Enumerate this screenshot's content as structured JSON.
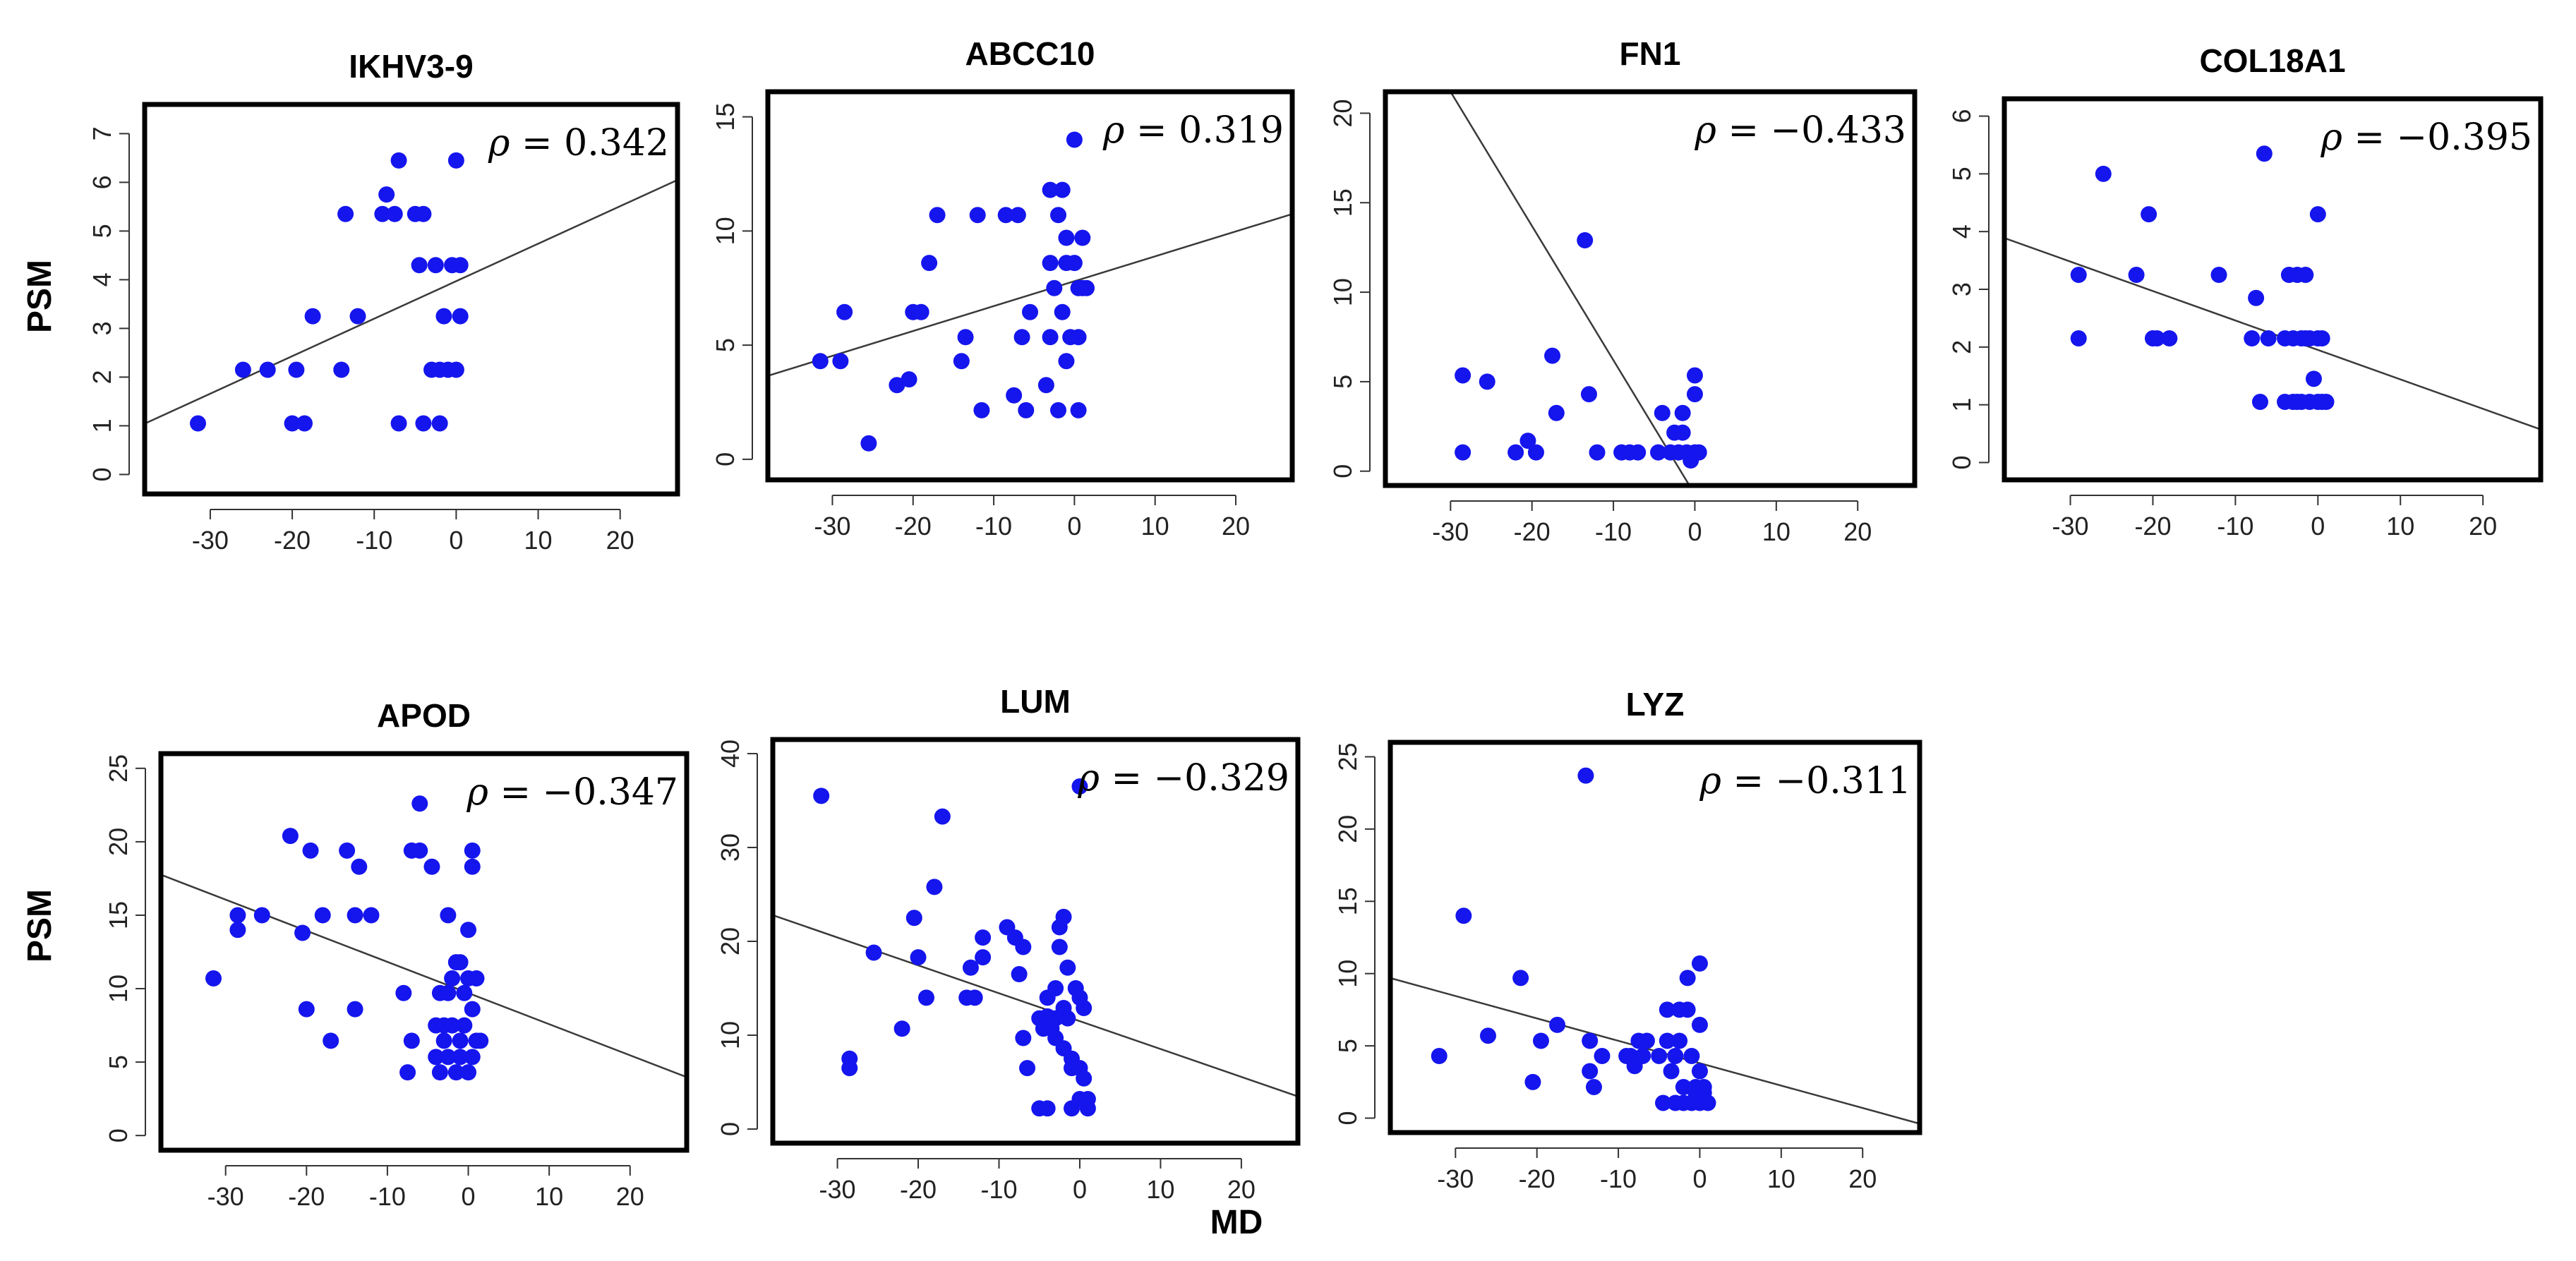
{
  "y_axis_title": "PSM",
  "x_axis_title": "MD",
  "chart_data": [
    {
      "type": "scatter",
      "title": "IKHV3-9",
      "rho": "0.342",
      "xlim": [
        -38,
        27
      ],
      "ylim": [
        -0.4,
        7.6
      ],
      "xticks": [
        -30,
        -20,
        -10,
        0,
        10,
        20
      ],
      "yticks": [
        0,
        1,
        2,
        3,
        4,
        5,
        6,
        7
      ],
      "fit": {
        "slope": 0.077,
        "intercept": 3.97
      },
      "points": [
        [
          -31.5,
          1.05
        ],
        [
          -26,
          2.15
        ],
        [
          -23,
          2.15
        ],
        [
          -19.5,
          2.15
        ],
        [
          -20,
          1.05
        ],
        [
          -18.5,
          1.05
        ],
        [
          -17.5,
          3.25
        ],
        [
          -14,
          2.15
        ],
        [
          -13.5,
          5.35
        ],
        [
          -12,
          3.25
        ],
        [
          -9,
          5.35
        ],
        [
          -8.5,
          5.75
        ],
        [
          -7.5,
          5.35
        ],
        [
          -7,
          6.45
        ],
        [
          -7,
          1.05
        ],
        [
          -5,
          5.35
        ],
        [
          -4.5,
          4.3
        ],
        [
          -4,
          5.35
        ],
        [
          -4,
          1.05
        ],
        [
          -3,
          2.15
        ],
        [
          -2.5,
          4.3
        ],
        [
          -2,
          1.05
        ],
        [
          -2,
          2.15
        ],
        [
          -1.5,
          3.25
        ],
        [
          -1,
          2.15
        ],
        [
          -0.5,
          4.3
        ],
        [
          0,
          6.45
        ],
        [
          0,
          2.15
        ],
        [
          0.5,
          3.25
        ],
        [
          0.5,
          4.3
        ]
      ]
    },
    {
      "type": "scatter",
      "title": "ABCC10",
      "rho": "0.319",
      "xlim": [
        -38,
        27
      ],
      "ylim": [
        -0.9,
        16.1
      ],
      "xticks": [
        -30,
        -20,
        -10,
        0,
        10,
        20
      ],
      "yticks": [
        0,
        5,
        10,
        15
      ],
      "fit": {
        "slope": 0.109,
        "intercept": 7.8
      },
      "points": [
        [
          -31.5,
          4.3
        ],
        [
          -29,
          4.3
        ],
        [
          -28.5,
          6.45
        ],
        [
          -25.5,
          0.7
        ],
        [
          -22,
          3.25
        ],
        [
          -20.5,
          3.5
        ],
        [
          -20,
          6.45
        ],
        [
          -19,
          6.45
        ],
        [
          -18,
          8.6
        ],
        [
          -17,
          10.7
        ],
        [
          -14,
          4.3
        ],
        [
          -13.5,
          5.35
        ],
        [
          -12,
          10.7
        ],
        [
          -11.5,
          2.15
        ],
        [
          -8.5,
          10.7
        ],
        [
          -7.5,
          2.8
        ],
        [
          -7,
          10.7
        ],
        [
          -6.5,
          5.35
        ],
        [
          -6,
          2.15
        ],
        [
          -5.5,
          6.45
        ],
        [
          -3.5,
          3.25
        ],
        [
          -3,
          5.35
        ],
        [
          -3,
          8.6
        ],
        [
          -3,
          11.8
        ],
        [
          -2.5,
          7.5
        ],
        [
          -2,
          2.15
        ],
        [
          -2,
          10.7
        ],
        [
          -1.5,
          11.8
        ],
        [
          -1.5,
          6.45
        ],
        [
          -1,
          4.3
        ],
        [
          -1,
          9.7
        ],
        [
          -1,
          8.6
        ],
        [
          -0.5,
          5.35
        ],
        [
          0,
          14
        ],
        [
          0,
          8.6
        ],
        [
          0.5,
          7.5
        ],
        [
          0.5,
          2.15
        ],
        [
          0.5,
          5.35
        ],
        [
          1,
          9.7
        ],
        [
          1,
          7.5
        ],
        [
          1.5,
          7.5
        ]
      ]
    },
    {
      "type": "scatter",
      "title": "FN1",
      "rho": "−0.433",
      "xlim": [
        -38,
        27
      ],
      "ylim": [
        -0.8,
        21.2
      ],
      "xticks": [
        -30,
        -20,
        -10,
        0,
        10,
        20
      ],
      "yticks": [
        0,
        5,
        10,
        15,
        20
      ],
      "fit": {
        "slope": -0.75,
        "intercept": -1.3
      },
      "points": [
        [
          -28.5,
          5.35
        ],
        [
          -28.5,
          1.05
        ],
        [
          -25.5,
          5
        ],
        [
          -22,
          1.05
        ],
        [
          -20.5,
          1.7
        ],
        [
          -19.5,
          1.05
        ],
        [
          -17.5,
          6.45
        ],
        [
          -17,
          3.25
        ],
        [
          -13.5,
          12.9
        ],
        [
          -13,
          4.3
        ],
        [
          -12,
          1.05
        ],
        [
          -9,
          1.05
        ],
        [
          -8,
          1.05
        ],
        [
          -7,
          1.05
        ],
        [
          -4.5,
          1.05
        ],
        [
          -4,
          3.25
        ],
        [
          -3,
          1.05
        ],
        [
          -2.5,
          2.15
        ],
        [
          -2,
          1.05
        ],
        [
          -1.5,
          3.25
        ],
        [
          -1.5,
          2.15
        ],
        [
          -1,
          1.05
        ],
        [
          -0.5,
          0.6
        ],
        [
          0,
          1.05
        ],
        [
          0,
          4.3
        ],
        [
          0,
          5.35
        ],
        [
          0.5,
          1.05
        ]
      ]
    },
    {
      "type": "scatter",
      "title": "COL18A1",
      "rho": "−0.395",
      "xlim": [
        -38,
        27
      ],
      "ylim": [
        -0.3,
        6.3
      ],
      "xticks": [
        -30,
        -20,
        -10,
        0,
        10,
        20
      ],
      "yticks": [
        0,
        1,
        2,
        3,
        4,
        5,
        6
      ],
      "fit": {
        "slope": -0.051,
        "intercept": 1.95
      },
      "points": [
        [
          -29,
          3.25
        ],
        [
          -29,
          2.15
        ],
        [
          -26,
          5
        ],
        [
          -22,
          3.25
        ],
        [
          -20.5,
          4.3
        ],
        [
          -20,
          2.15
        ],
        [
          -19.5,
          2.15
        ],
        [
          -18,
          2.15
        ],
        [
          -12,
          3.25
        ],
        [
          -8,
          2.15
        ],
        [
          -7.5,
          2.85
        ],
        [
          -7,
          1.05
        ],
        [
          -6.5,
          5.35
        ],
        [
          -6,
          2.15
        ],
        [
          -4,
          1.05
        ],
        [
          -4,
          2.15
        ],
        [
          -3.5,
          3.25
        ],
        [
          -3,
          1.05
        ],
        [
          -3,
          2.15
        ],
        [
          -2.5,
          1.05
        ],
        [
          -2.5,
          3.25
        ],
        [
          -2,
          2.15
        ],
        [
          -2,
          1.05
        ],
        [
          -1.5,
          2.15
        ],
        [
          -1.5,
          3.25
        ],
        [
          -1,
          1.05
        ],
        [
          -1,
          2.15
        ],
        [
          -0.5,
          1.45
        ],
        [
          0,
          2.15
        ],
        [
          0,
          4.3
        ],
        [
          0,
          1.05
        ],
        [
          0.5,
          2.15
        ],
        [
          0.5,
          1.05
        ],
        [
          1,
          1.05
        ]
      ]
    },
    {
      "type": "scatter",
      "title": "APOD",
      "rho": "−0.347",
      "xlim": [
        -38,
        27
      ],
      "ylim": [
        -1,
        26
      ],
      "xticks": [
        -30,
        -20,
        -10,
        0,
        10,
        20
      ],
      "yticks": [
        0,
        5,
        10,
        15,
        20,
        25
      ],
      "fit": {
        "slope": -0.212,
        "intercept": 9.7
      },
      "points": [
        [
          -31.5,
          10.7
        ],
        [
          -28.5,
          15
        ],
        [
          -28.5,
          14
        ],
        [
          -25.5,
          15
        ],
        [
          -22,
          20.4
        ],
        [
          -20.5,
          13.8
        ],
        [
          -20,
          8.6
        ],
        [
          -19.5,
          19.4
        ],
        [
          -18,
          15
        ],
        [
          -17,
          6.45
        ],
        [
          -15,
          19.4
        ],
        [
          -14,
          15
        ],
        [
          -14,
          8.6
        ],
        [
          -13.5,
          18.3
        ],
        [
          -12,
          15
        ],
        [
          -8,
          9.7
        ],
        [
          -7.5,
          4.3
        ],
        [
          -7,
          19.4
        ],
        [
          -7,
          6.45
        ],
        [
          -6,
          22.6
        ],
        [
          -6,
          19.4
        ],
        [
          -4.5,
          18.3
        ],
        [
          -4,
          7.5
        ],
        [
          -4,
          5.35
        ],
        [
          -3.5,
          9.7
        ],
        [
          -3.5,
          4.3
        ],
        [
          -3,
          6.45
        ],
        [
          -3,
          7.5
        ],
        [
          -2.5,
          15
        ],
        [
          -2.5,
          5.35
        ],
        [
          -2.5,
          9.7
        ],
        [
          -2,
          10.7
        ],
        [
          -2,
          7.5
        ],
        [
          -1.5,
          11.8
        ],
        [
          -1.5,
          4.3
        ],
        [
          -1,
          6.45
        ],
        [
          -1,
          11.8
        ],
        [
          -1,
          5.35
        ],
        [
          -0.5,
          7.5
        ],
        [
          -0.5,
          9.7
        ],
        [
          0,
          14
        ],
        [
          0,
          4.3
        ],
        [
          0,
          10.7
        ],
        [
          0.5,
          19.4
        ],
        [
          0.5,
          18.3
        ],
        [
          0.5,
          8.6
        ],
        [
          0.5,
          5.35
        ],
        [
          1,
          6.45
        ],
        [
          1,
          10.7
        ],
        [
          1.5,
          6.45
        ]
      ]
    },
    {
      "type": "scatter",
      "title": "LUM",
      "rho": "−0.329",
      "xlim": [
        -38,
        27
      ],
      "ylim": [
        -1.5,
        41.5
      ],
      "xticks": [
        -30,
        -20,
        -10,
        0,
        10,
        20
      ],
      "yticks": [
        0,
        10,
        20,
        30,
        40
      ],
      "fit": {
        "slope": -0.297,
        "intercept": 11.5
      },
      "points": [
        [
          -32,
          35.5
        ],
        [
          -28.5,
          7.5
        ],
        [
          -28.5,
          6.5
        ],
        [
          -25.5,
          18.8
        ],
        [
          -22,
          10.7
        ],
        [
          -20.5,
          22.5
        ],
        [
          -20,
          18.3
        ],
        [
          -19,
          14
        ],
        [
          -18,
          25.8
        ],
        [
          -17,
          33.3
        ],
        [
          -14,
          14
        ],
        [
          -13.5,
          17.2
        ],
        [
          -13,
          14
        ],
        [
          -12,
          20.4
        ],
        [
          -12,
          18.3
        ],
        [
          -9,
          21.5
        ],
        [
          -8,
          20.4
        ],
        [
          -7.5,
          16.5
        ],
        [
          -7,
          19.4
        ],
        [
          -7,
          9.7
        ],
        [
          -6.5,
          6.5
        ],
        [
          -5,
          11.8
        ],
        [
          -5,
          2.2
        ],
        [
          -4.5,
          10.7
        ],
        [
          -4,
          14
        ],
        [
          -4,
          12
        ],
        [
          -4,
          2.2
        ],
        [
          -3.5,
          10.7
        ],
        [
          -3,
          15
        ],
        [
          -3,
          11.8
        ],
        [
          -3,
          9.7
        ],
        [
          -2.5,
          21.5
        ],
        [
          -2.5,
          19.4
        ],
        [
          -2,
          12.9
        ],
        [
          -2,
          22.6
        ],
        [
          -2,
          8.6
        ],
        [
          -1.5,
          17.2
        ],
        [
          -1.5,
          11.8
        ],
        [
          -1,
          7.5
        ],
        [
          -1,
          6.5
        ],
        [
          -1,
          2.2
        ],
        [
          -0.5,
          15
        ],
        [
          0,
          36.5
        ],
        [
          0,
          14
        ],
        [
          0,
          6.5
        ],
        [
          0,
          3.2
        ],
        [
          0.5,
          12.9
        ],
        [
          0.5,
          5.4
        ],
        [
          1,
          2.2
        ],
        [
          1,
          3.2
        ]
      ]
    },
    {
      "type": "scatter",
      "title": "LYZ",
      "rho": "−0.311",
      "xlim": [
        -38,
        27
      ],
      "ylim": [
        -1,
        26
      ],
      "xticks": [
        -30,
        -20,
        -10,
        0,
        10,
        20
      ],
      "yticks": [
        0,
        5,
        10,
        15,
        20,
        25
      ],
      "fit": {
        "slope": -0.155,
        "intercept": 3.8
      },
      "points": [
        [
          -32,
          4.3
        ],
        [
          -29,
          14
        ],
        [
          -26,
          5.7
        ],
        [
          -22,
          9.7
        ],
        [
          -20.5,
          2.5
        ],
        [
          -19.5,
          5.35
        ],
        [
          -17.5,
          6.45
        ],
        [
          -14,
          23.7
        ],
        [
          -13.5,
          5.35
        ],
        [
          -13.5,
          3.25
        ],
        [
          -13,
          2.15
        ],
        [
          -12,
          4.3
        ],
        [
          -9,
          4.3
        ],
        [
          -8.5,
          4.3
        ],
        [
          -8,
          3.6
        ],
        [
          -7.5,
          5.35
        ],
        [
          -7,
          4.3
        ],
        [
          -6.5,
          5.35
        ],
        [
          -5,
          4.3
        ],
        [
          -4.5,
          1.05
        ],
        [
          -4,
          7.5
        ],
        [
          -4,
          5.35
        ],
        [
          -3.5,
          3.25
        ],
        [
          -3,
          4.3
        ],
        [
          -3,
          1.05
        ],
        [
          -2.5,
          7.5
        ],
        [
          -2.5,
          5.35
        ],
        [
          -2,
          1.05
        ],
        [
          -2,
          2.15
        ],
        [
          -1.5,
          9.7
        ],
        [
          -1.5,
          7.5
        ],
        [
          -1,
          1.05
        ],
        [
          -1,
          4.3
        ],
        [
          -0.5,
          1.75
        ],
        [
          -0.5,
          2.15
        ],
        [
          0,
          1.05
        ],
        [
          0,
          3.25
        ],
        [
          0,
          6.45
        ],
        [
          0,
          10.7
        ],
        [
          0.5,
          1.75
        ],
        [
          0.5,
          2.15
        ],
        [
          1,
          1.05
        ]
      ]
    }
  ]
}
